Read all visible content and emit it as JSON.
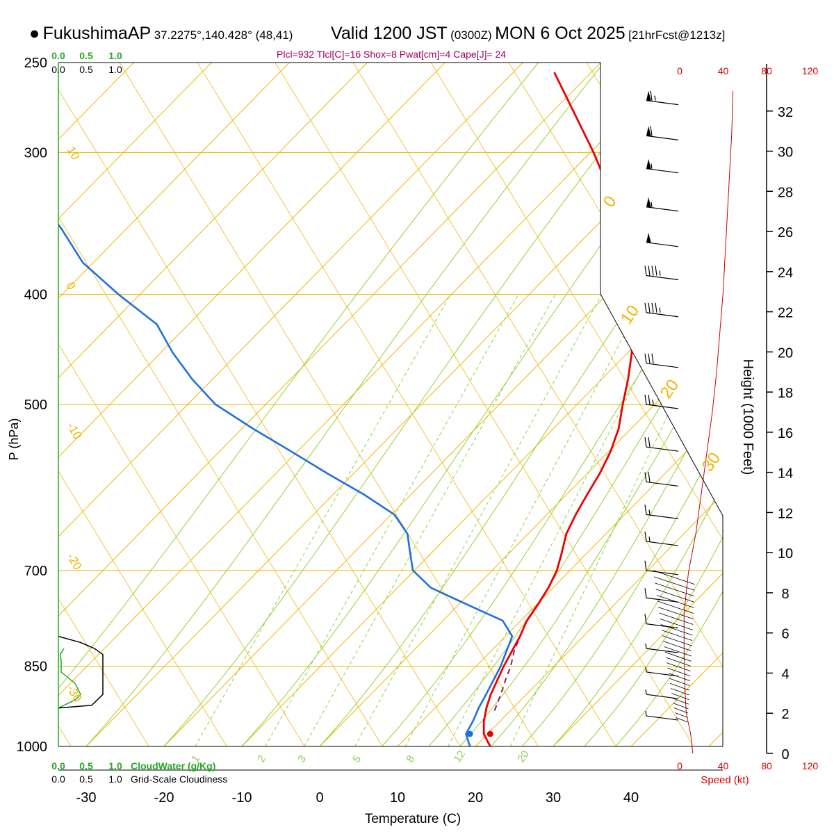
{
  "header": {
    "bullet": "●",
    "station": "FukushimaAP",
    "coords": "37.2275°,140.428° (48,41)",
    "valid_label": "Valid 1200 JST",
    "utc": "(0300Z)",
    "date": "MON 6 Oct 2025",
    "forecast": "[21hrFcst@1213z]"
  },
  "indices": "Plcl=932 Tlcl[C]=16 Shox=8 Pwat[cm]=4 Cape[J]= 24",
  "colors": {
    "isotherm": "#f0b400",
    "dry_adiabat": "#f0b400",
    "moist_adiabat": "#9acd32",
    "mixing_ratio": "#8bd14a",
    "temperature": "#ee0000",
    "dewpoint": "#1e6fe0",
    "parcel": "#8b1a5a",
    "cloud_water": "#22aa22",
    "cloudiness": "#000000",
    "speed_profile": "#cc0000"
  },
  "chart_data": {
    "type": "line",
    "title": "FukushimaAP skew-T log-p sounding, Valid 1200 JST MON 6 Oct 2025",
    "xlabel": "Temperature (C)",
    "ylabel": "P (hPa)",
    "x_ticks": [
      "-30",
      "-20",
      "-10",
      "0",
      "10",
      "20",
      "30",
      "40"
    ],
    "p_ticks": [
      "250",
      "300",
      "400",
      "500",
      "700",
      "850",
      "1000"
    ],
    "xlim": [
      -34,
      44
    ],
    "plim": [
      250,
      1000
    ],
    "series": [
      {
        "name": "Temperature",
        "points": [
          [
            1000,
            21.9
          ],
          [
            975,
            20.3
          ],
          [
            950,
            19.5
          ],
          [
            925,
            19.0
          ],
          [
            900,
            18.7
          ],
          [
            850,
            18.6
          ],
          [
            800,
            18.8
          ],
          [
            775,
            18.7
          ],
          [
            750,
            19.1
          ],
          [
            725,
            19.4
          ],
          [
            700,
            19.4
          ],
          [
            675,
            18.9
          ],
          [
            650,
            18.3
          ],
          [
            625,
            18.3
          ],
          [
            600,
            18.5
          ],
          [
            575,
            18.8
          ],
          [
            550,
            18.8
          ],
          [
            525,
            18.4
          ],
          [
            500,
            17.4
          ],
          [
            475,
            16.5
          ],
          [
            450,
            15.3
          ],
          [
            425,
            13.6
          ],
          [
            400,
            11.6
          ],
          [
            375,
            9.5
          ],
          [
            350,
            6.4
          ],
          [
            325,
            2.4
          ],
          [
            300,
            -2.2
          ],
          [
            275,
            -7.6
          ],
          [
            255,
            -12.3
          ]
        ]
      },
      {
        "name": "Dewpoint",
        "points": [
          [
            1000,
            19.3
          ],
          [
            975,
            18.0
          ],
          [
            950,
            18.1
          ],
          [
            925,
            18.0
          ],
          [
            900,
            18.1
          ],
          [
            850,
            18.2
          ],
          [
            800,
            17.8
          ],
          [
            775,
            15.6
          ],
          [
            750,
            10.0
          ],
          [
            725,
            4.3
          ],
          [
            700,
            0.9
          ],
          [
            675,
            -0.6
          ],
          [
            650,
            -2.1
          ],
          [
            625,
            -5.0
          ],
          [
            600,
            -10.2
          ],
          [
            575,
            -16.2
          ],
          [
            550,
            -22.2
          ],
          [
            525,
            -28.6
          ],
          [
            500,
            -34.9
          ],
          [
            475,
            -39.5
          ],
          [
            450,
            -43.7
          ],
          [
            425,
            -47.5
          ],
          [
            400,
            -54.3
          ],
          [
            375,
            -60.9
          ],
          [
            350,
            -65.8
          ],
          [
            325,
            -71.6
          ],
          [
            300,
            -77.4
          ],
          [
            275,
            -85.5
          ],
          [
            255,
            -92.5
          ]
        ]
      },
      {
        "name": "Parcel",
        "points": [
          [
            930,
            20.2
          ],
          [
            900,
            20.0
          ],
          [
            875,
            19.7
          ],
          [
            850,
            19.5
          ],
          [
            825,
            19.0
          ],
          [
            800,
            18.8
          ]
        ]
      }
    ],
    "mixing_ratio_labels": [
      "1",
      "2",
      "3",
      "5",
      "8",
      "12",
      "20"
    ],
    "dry_adiabat_labels": [
      "-30",
      "-20",
      "-10",
      "0",
      "10",
      "20",
      "30",
      "40"
    ],
    "moist_adiabat_labels": [
      "10",
      "0",
      "-10",
      "20",
      "30"
    ],
    "cloudwater": {
      "label": "CloudWater (g/Kg)",
      "ticks": [
        "0.0",
        "0.5",
        "1.0"
      ],
      "points": [
        [
          820,
          0.1
        ],
        [
          830,
          0.03
        ],
        [
          840,
          0.05
        ],
        [
          860,
          0.05
        ],
        [
          880,
          0.3
        ],
        [
          900,
          0.4
        ],
        [
          910,
          0.3
        ],
        [
          925,
          0.0
        ]
      ]
    },
    "cloudiness": {
      "label": "Grid-Scale Cloudiness",
      "ticks": [
        "0.0",
        "0.5",
        "1.0"
      ],
      "points": [
        [
          800,
          0.0
        ],
        [
          810,
          0.4
        ],
        [
          820,
          0.65
        ],
        [
          830,
          0.8
        ],
        [
          850,
          0.8
        ],
        [
          900,
          0.8
        ],
        [
          920,
          0.6
        ],
        [
          925,
          0.0
        ]
      ]
    },
    "height_axis": {
      "label": "Height (1000 Feet)",
      "ticks": [
        "0",
        "2",
        "4",
        "6",
        "8",
        "10",
        "12",
        "14",
        "16",
        "18",
        "20",
        "22",
        "24",
        "26",
        "28",
        "30",
        "32"
      ]
    },
    "wind_speed_axis": {
      "label": "Speed (kt)",
      "ticks": [
        "0",
        "40",
        "80",
        "120"
      ]
    },
    "wind_speed_profile": [
      [
        0,
        12
      ],
      [
        1,
        10
      ],
      [
        2,
        6
      ],
      [
        3,
        5
      ],
      [
        5,
        4
      ],
      [
        7,
        4
      ],
      [
        9,
        8
      ],
      [
        11,
        15
      ],
      [
        13,
        20
      ],
      [
        15,
        25
      ],
      [
        17,
        30
      ],
      [
        19,
        34
      ],
      [
        21,
        37
      ],
      [
        23,
        40
      ],
      [
        25,
        42
      ],
      [
        27,
        44
      ],
      [
        29,
        46
      ],
      [
        31,
        48
      ],
      [
        33,
        49
      ]
    ],
    "wind_barbs": [
      {
        "p": 270,
        "speed": 65
      },
      {
        "p": 290,
        "speed": 60
      },
      {
        "p": 310,
        "speed": 55
      },
      {
        "p": 335,
        "speed": 55
      },
      {
        "p": 360,
        "speed": 52
      },
      {
        "p": 385,
        "speed": 48
      },
      {
        "p": 415,
        "speed": 45
      },
      {
        "p": 460,
        "speed": 30
      },
      {
        "p": 500,
        "speed": 25
      },
      {
        "p": 545,
        "speed": 20
      },
      {
        "p": 585,
        "speed": 20
      },
      {
        "p": 625,
        "speed": 15
      },
      {
        "p": 660,
        "speed": 15
      },
      {
        "p": 700,
        "speed": 12
      },
      {
        "p": 740,
        "speed": 10
      },
      {
        "p": 780,
        "speed": 10
      },
      {
        "p": 820,
        "speed": 8
      },
      {
        "p": 860,
        "speed": 6
      },
      {
        "p": 900,
        "speed": 5
      },
      {
        "p": 940,
        "speed": 5
      }
    ]
  }
}
